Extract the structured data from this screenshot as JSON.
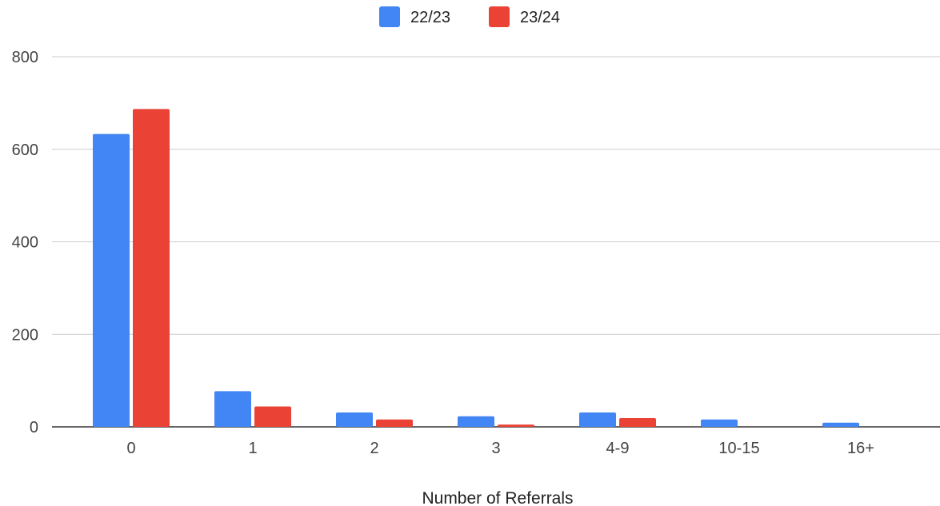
{
  "chart_data": {
    "type": "bar",
    "title": "",
    "xlabel": "Number of Referrals",
    "ylabel": "",
    "categories": [
      "0",
      "1",
      "2",
      "3",
      "4-9",
      "10-15",
      "16+"
    ],
    "series": [
      {
        "name": "22/23",
        "color": "#4285f4",
        "values": [
          633,
          77,
          31,
          23,
          31,
          16,
          9
        ]
      },
      {
        "name": "23/24",
        "color": "#ea4335",
        "values": [
          687,
          44,
          16,
          5,
          19,
          0,
          0
        ]
      }
    ],
    "ylim": [
      0,
      800
    ],
    "yticks": [
      0,
      200,
      400,
      600,
      800
    ],
    "grid": true,
    "legend_position": "top-center"
  }
}
